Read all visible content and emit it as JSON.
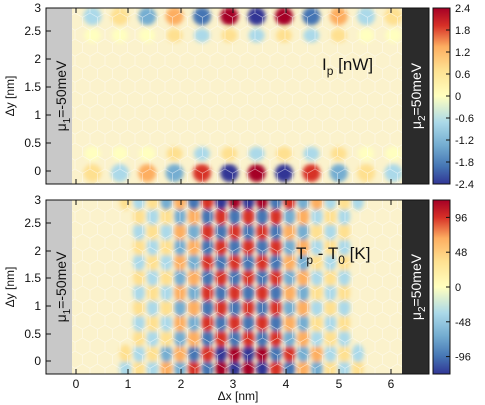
{
  "chart_data": [
    {
      "type": "heatmap",
      "panel": "top",
      "annotation": {
        "main": "I",
        "sub": "p",
        "tail": " [nW]"
      },
      "ylabel": "Δy [nm]",
      "xlabel": "",
      "xlim": [
        -0.6,
        6.4
      ],
      "ylim": [
        -0.2,
        3.0
      ],
      "yticks": [
        "0",
        "0.5",
        "1",
        "1.5",
        "2",
        "2.5",
        "3"
      ],
      "colorbar": {
        "min": -2.4,
        "max": 2.4,
        "ticks": [
          "2.4",
          "1.8",
          "1.2",
          "0.6",
          "0",
          "-0.6",
          "-1.2",
          "-1.8",
          "-2.4"
        ]
      },
      "left_lead": {
        "main": "μ",
        "sub": "1",
        "tail": "=-50meV"
      },
      "right_lead": {
        "main": "μ",
        "sub": "2",
        "tail": "=50meV"
      },
      "colors": {
        "lead_left": "#c8c8c8",
        "lead_right": "#2b2b2b",
        "background": "#fbf2cc"
      }
    },
    {
      "type": "heatmap",
      "panel": "bottom",
      "annotation": {
        "main": "T",
        "sub": "p",
        "tail": " - T",
        "sub2": "0",
        "tail2": " [K]"
      },
      "ylabel": "Δy [nm]",
      "xlabel": "Δx [nm]",
      "xlim": [
        -0.6,
        6.4
      ],
      "ylim": [
        -0.2,
        3.0
      ],
      "xticks": [
        "0",
        "1",
        "2",
        "3",
        "4",
        "5",
        "6"
      ],
      "yticks": [
        "0",
        "0.5",
        "1",
        "1.5",
        "2",
        "2.5",
        "3"
      ],
      "colorbar": {
        "min": -120,
        "max": 120,
        "ticks": [
          "96",
          "48",
          "0",
          "-48",
          "-96"
        ]
      },
      "left_lead": {
        "main": "μ",
        "sub": "1",
        "tail": "=-50meV"
      },
      "right_lead": {
        "main": "μ",
        "sub": "2",
        "tail": "=50meV"
      },
      "colors": {
        "lead_left": "#c8c8c8",
        "lead_right": "#2b2b2b",
        "background": "#fbf2cc"
      }
    }
  ]
}
